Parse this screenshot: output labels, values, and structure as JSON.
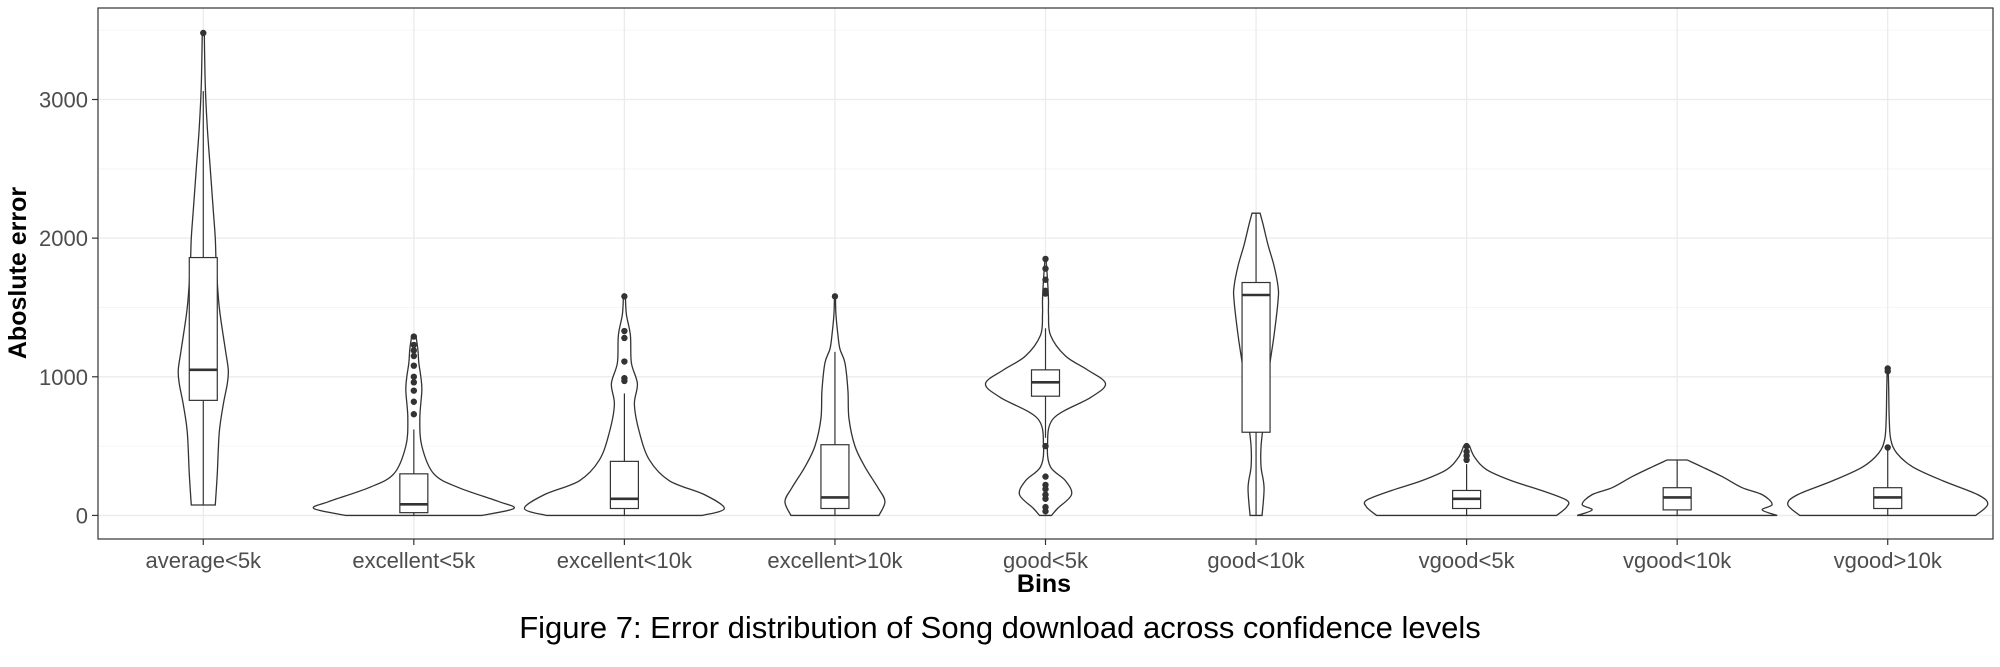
{
  "chart_data": {
    "type": "violin",
    "title": "",
    "xlabel": "Bins",
    "ylabel": "Aboslute error",
    "ylim": [
      -170,
      3660
    ],
    "yticks": [
      0,
      1000,
      2000,
      3000
    ],
    "grid": true,
    "categories": [
      "average<5k",
      "excellent<5k",
      "excellent<10k",
      "excellent>10k",
      "good<5k",
      "good<10k",
      "vgood<5k",
      "vgood<10k",
      "vgood>10k"
    ],
    "series": [
      {
        "category": "average<5k",
        "box": {
          "q1": 830,
          "median": 1050,
          "q3": 1860,
          "lower_whisker": 75,
          "upper_whisker": 3060
        },
        "outliers": [
          3480
        ],
        "density": [
          [
            75,
            0.12
          ],
          [
            300,
            0.14
          ],
          [
            600,
            0.16
          ],
          [
            800,
            0.2
          ],
          [
            950,
            0.24
          ],
          [
            1050,
            0.25
          ],
          [
            1200,
            0.22
          ],
          [
            1500,
            0.16
          ],
          [
            1800,
            0.13
          ],
          [
            2000,
            0.12
          ],
          [
            2200,
            0.1
          ],
          [
            2500,
            0.07
          ],
          [
            2800,
            0.04
          ],
          [
            3100,
            0.02
          ],
          [
            3480,
            0.01
          ]
        ]
      },
      {
        "category": "excellent<5k",
        "box": {
          "q1": 20,
          "median": 80,
          "q3": 300,
          "lower_whisker": 0,
          "upper_whisker": 620
        },
        "outliers": [
          730,
          820,
          900,
          960,
          1000,
          1080,
          1150,
          1190,
          1230,
          1290
        ],
        "density": [
          [
            0,
            0.68
          ],
          [
            50,
            1.0
          ],
          [
            100,
            0.85
          ],
          [
            200,
            0.45
          ],
          [
            300,
            0.2
          ],
          [
            500,
            0.08
          ],
          [
            700,
            0.06
          ],
          [
            900,
            0.08
          ],
          [
            1000,
            0.07
          ],
          [
            1100,
            0.05
          ],
          [
            1200,
            0.04
          ],
          [
            1300,
            0.02
          ]
        ]
      },
      {
        "category": "excellent<10k",
        "box": {
          "q1": 50,
          "median": 120,
          "q3": 390,
          "lower_whisker": 0,
          "upper_whisker": 880
        },
        "outliers": [
          970,
          990,
          1110,
          1280,
          1330,
          1580
        ],
        "density": [
          [
            0,
            0.78
          ],
          [
            50,
            1.0
          ],
          [
            150,
            0.8
          ],
          [
            250,
            0.45
          ],
          [
            400,
            0.25
          ],
          [
            600,
            0.15
          ],
          [
            800,
            0.1
          ],
          [
            950,
            0.13
          ],
          [
            1100,
            0.07
          ],
          [
            1300,
            0.06
          ],
          [
            1450,
            0.02
          ],
          [
            1580,
            0.01
          ]
        ]
      },
      {
        "category": "excellent>10k",
        "box": {
          "q1": 50,
          "median": 130,
          "q3": 510,
          "lower_whisker": 0,
          "upper_whisker": 1180
        },
        "outliers": [
          1580
        ],
        "density": [
          [
            0,
            0.44
          ],
          [
            100,
            0.5
          ],
          [
            200,
            0.43
          ],
          [
            350,
            0.3
          ],
          [
            500,
            0.2
          ],
          [
            700,
            0.14
          ],
          [
            900,
            0.13
          ],
          [
            1100,
            0.1
          ],
          [
            1200,
            0.05
          ],
          [
            1300,
            0.03
          ],
          [
            1450,
            0.01
          ],
          [
            1580,
            0.005
          ]
        ]
      },
      {
        "category": "good<5k",
        "box": {
          "q1": 860,
          "median": 960,
          "q3": 1050,
          "lower_whisker": 560,
          "upper_whisker": 1350
        },
        "outliers": [
          30,
          60,
          120,
          150,
          190,
          220,
          280,
          500,
          1600,
          1620,
          1700,
          1780,
          1850
        ],
        "density": [
          [
            0,
            0.06
          ],
          [
            50,
            0.12
          ],
          [
            150,
            0.26
          ],
          [
            250,
            0.2
          ],
          [
            350,
            0.05
          ],
          [
            500,
            0.02
          ],
          [
            700,
            0.08
          ],
          [
            850,
            0.45
          ],
          [
            950,
            0.6
          ],
          [
            1050,
            0.42
          ],
          [
            1150,
            0.2
          ],
          [
            1300,
            0.05
          ],
          [
            1450,
            0.03
          ],
          [
            1550,
            0.03
          ],
          [
            1700,
            0.02
          ],
          [
            1850,
            0.005
          ]
        ]
      },
      {
        "category": "good<10k",
        "box": {
          "q1": 600,
          "median": 1590,
          "q3": 1680,
          "lower_whisker": 0,
          "upper_whisker": 2180
        },
        "outliers": [],
        "density": [
          [
            0,
            0.06
          ],
          [
            200,
            0.08
          ],
          [
            350,
            0.05
          ],
          [
            500,
            0.05
          ],
          [
            700,
            0.08
          ],
          [
            1000,
            0.12
          ],
          [
            1300,
            0.18
          ],
          [
            1550,
            0.22
          ],
          [
            1650,
            0.22
          ],
          [
            1800,
            0.18
          ],
          [
            1950,
            0.12
          ],
          [
            2100,
            0.07
          ],
          [
            2180,
            0.04
          ]
        ]
      },
      {
        "category": "vgood<5k",
        "box": {
          "q1": 50,
          "median": 120,
          "q3": 180,
          "lower_whisker": 0,
          "upper_whisker": 370
        },
        "outliers": [
          400,
          430,
          460,
          500
        ],
        "density": [
          [
            0,
            0.9
          ],
          [
            60,
            1.0
          ],
          [
            110,
            1.0
          ],
          [
            180,
            0.75
          ],
          [
            250,
            0.45
          ],
          [
            330,
            0.2
          ],
          [
            420,
            0.08
          ],
          [
            500,
            0.03
          ]
        ]
      },
      {
        "category": "vgood<10k",
        "box": {
          "q1": 40,
          "median": 130,
          "q3": 200,
          "lower_whisker": 0,
          "upper_whisker": 400
        },
        "outliers": [],
        "density": [
          [
            0,
            1.0
          ],
          [
            40,
            0.85
          ],
          [
            80,
            0.95
          ],
          [
            150,
            0.85
          ],
          [
            200,
            0.65
          ],
          [
            280,
            0.45
          ],
          [
            350,
            0.25
          ],
          [
            400,
            0.1
          ]
        ]
      },
      {
        "category": "vgood>10k",
        "box": {
          "q1": 50,
          "median": 130,
          "q3": 200,
          "lower_whisker": 0,
          "upper_whisker": 470
        },
        "outliers": [
          490,
          1040,
          1060
        ],
        "density": [
          [
            0,
            0.88
          ],
          [
            80,
            1.0
          ],
          [
            150,
            0.9
          ],
          [
            250,
            0.55
          ],
          [
            350,
            0.25
          ],
          [
            450,
            0.09
          ],
          [
            550,
            0.03
          ],
          [
            700,
            0.015
          ],
          [
            900,
            0.01
          ],
          [
            1060,
            0.005
          ]
        ]
      }
    ],
    "caption": "Figure 7: Error distribution of Song download across confidence levels"
  },
  "colors": {
    "background": "#ffffff",
    "panel_border": "#333333",
    "grid_major": "#ebebeb",
    "grid_minor": "#f5f5f5",
    "violin_outline": "#333333",
    "violin_fill": "#ffffff",
    "box_outline": "#333333",
    "outlier": "#333333",
    "tick_label": "#4d4d4d",
    "axis_title": "#000000"
  }
}
